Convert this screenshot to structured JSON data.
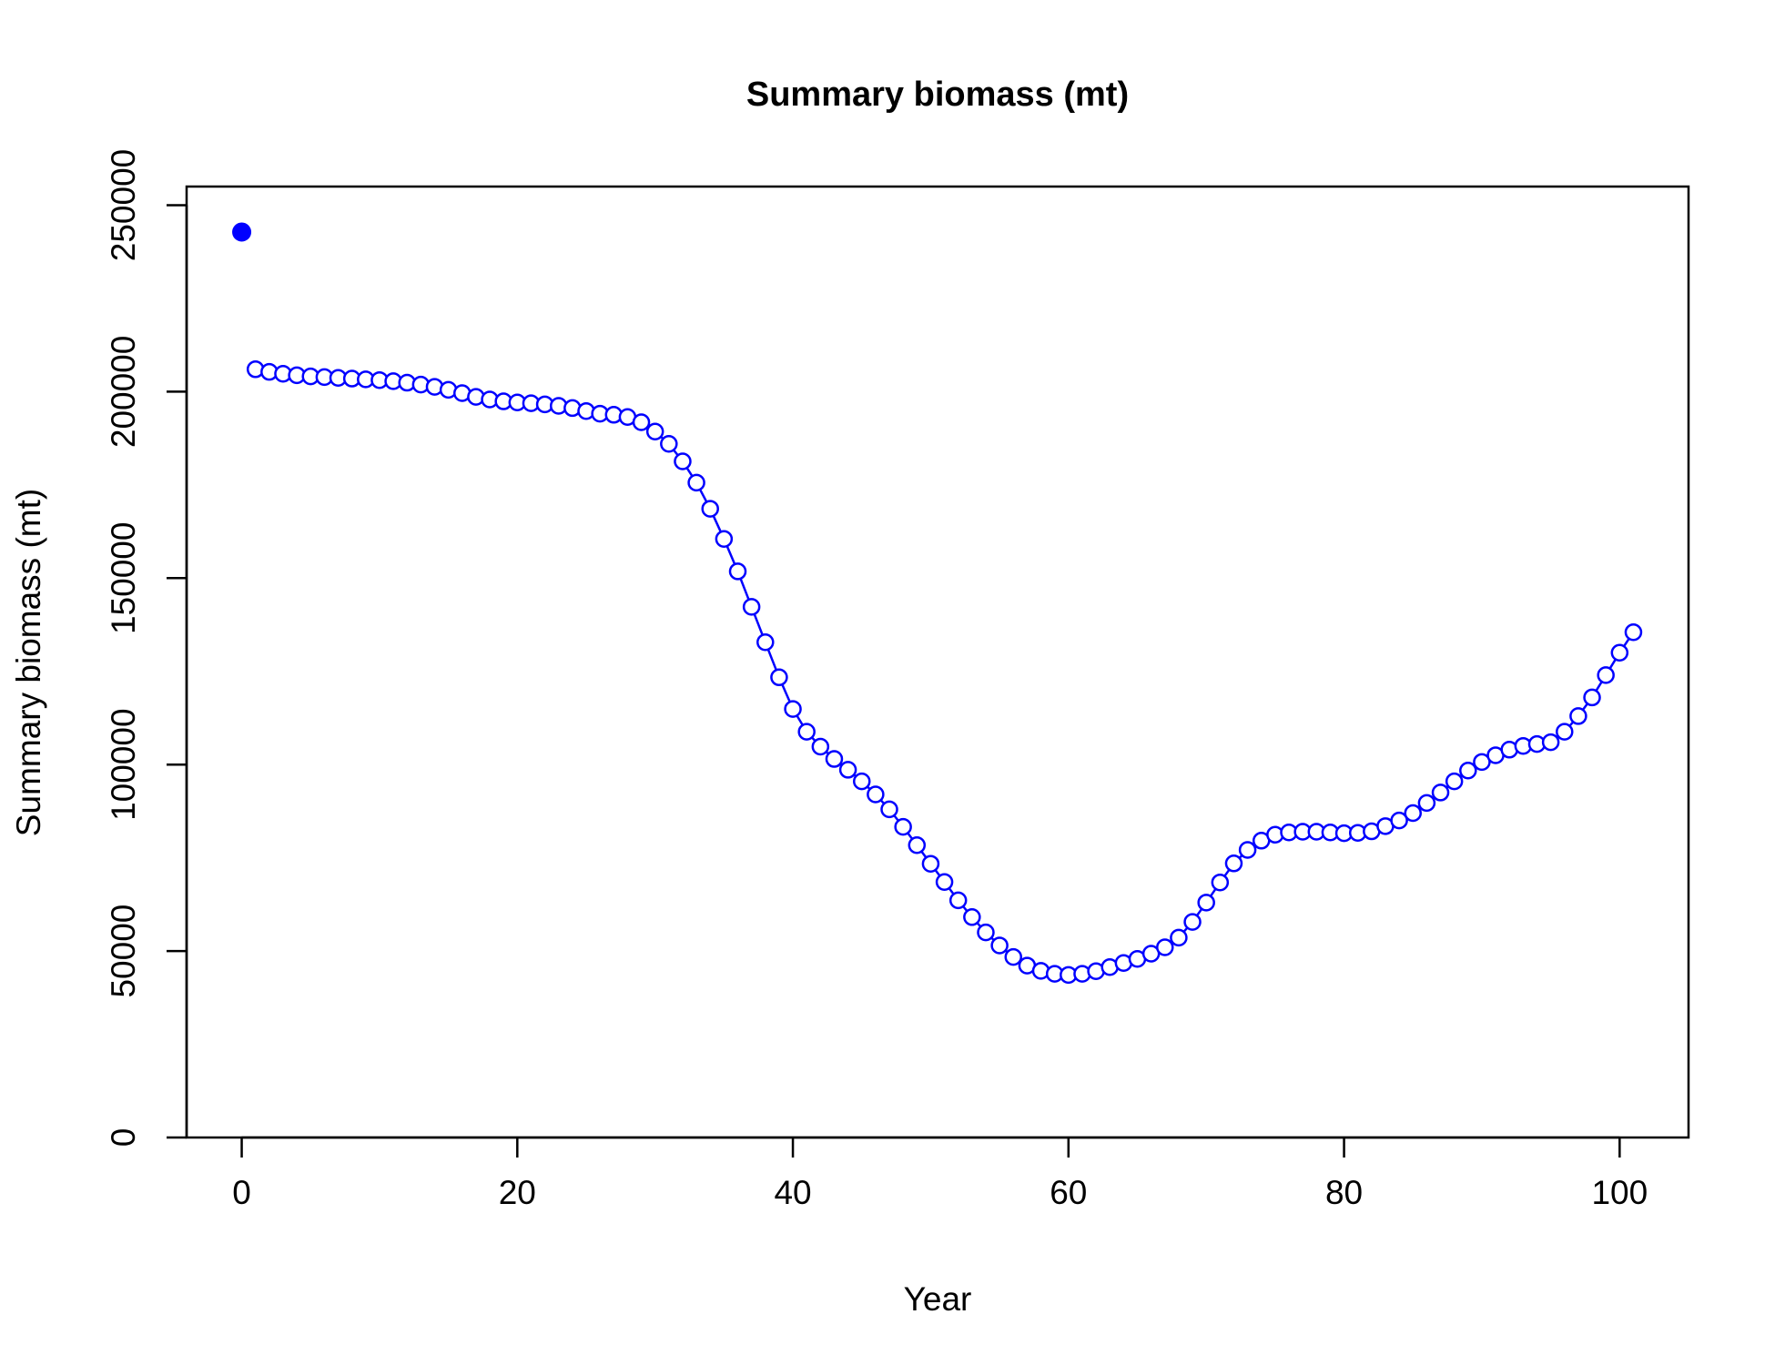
{
  "chart_data": {
    "type": "line",
    "title": "Summary biomass (mt)",
    "xlabel": "Year",
    "ylabel": "Summary biomass (mt)",
    "xlim": [
      -4,
      105
    ],
    "ylim": [
      0,
      255000
    ],
    "x_ticks": [
      0,
      20,
      40,
      60,
      80,
      100
    ],
    "x_tick_labels": [
      "0",
      "20",
      "40",
      "60",
      "80",
      "100"
    ],
    "y_ticks": [
      0,
      50000,
      100000,
      150000,
      200000,
      250000
    ],
    "y_tick_labels": [
      "0",
      "50000",
      "100000",
      "150000",
      "200000",
      "250000"
    ],
    "grid": false,
    "color": "#0000ff",
    "virgin_point": {
      "x": 0,
      "y": 242800
    },
    "series": [
      {
        "x": [
          1,
          2,
          3,
          4,
          5,
          6,
          7,
          8,
          9,
          10,
          11,
          12,
          13,
          14,
          15,
          16,
          17,
          18,
          19,
          20,
          21,
          22,
          23,
          24,
          25,
          26,
          27,
          28,
          29,
          30,
          31,
          32,
          33,
          34,
          35,
          36,
          37,
          38,
          39,
          40,
          41,
          42,
          43,
          44,
          45,
          46,
          47,
          48,
          49,
          50,
          51,
          52,
          53,
          54,
          55,
          56,
          57,
          58,
          59,
          60,
          61,
          62,
          63,
          64,
          65,
          66,
          67,
          68,
          69,
          70,
          71,
          72,
          73,
          74,
          75,
          76,
          77,
          78,
          79,
          80,
          81,
          82,
          83,
          84,
          85,
          86,
          87,
          88,
          89,
          90,
          91,
          92,
          93,
          94,
          95,
          96,
          97,
          98,
          99,
          100,
          101
        ],
        "values": [
          206000,
          205300,
          204800,
          204400,
          204100,
          203900,
          203700,
          203500,
          203300,
          203100,
          202800,
          202400,
          201900,
          201300,
          200500,
          199600,
          198600,
          197900,
          197400,
          197100,
          196900,
          196600,
          196200,
          195600,
          194800,
          194100,
          193800,
          193200,
          191800,
          189300,
          186000,
          181300,
          175600,
          168600,
          160500,
          151800,
          142300,
          132800,
          123400,
          114900,
          108800,
          104800,
          101500,
          98600,
          95500,
          92000,
          88000,
          83300,
          78400,
          73400,
          68500,
          63600,
          59100,
          55000,
          51500,
          48400,
          46100,
          44700,
          43900,
          43600,
          43900,
          44600,
          45700,
          46800,
          47900,
          49300,
          51000,
          53600,
          57800,
          63000,
          68400,
          73500,
          77100,
          79600,
          81200,
          81800,
          82000,
          82000,
          81800,
          81600,
          81700,
          82100,
          83500,
          85000,
          87000,
          89700,
          92500,
          95500,
          98400,
          100700,
          102500,
          104000,
          105000,
          105500,
          106000,
          108800,
          113000,
          118000,
          124000,
          130000,
          135500
        ]
      }
    ]
  }
}
